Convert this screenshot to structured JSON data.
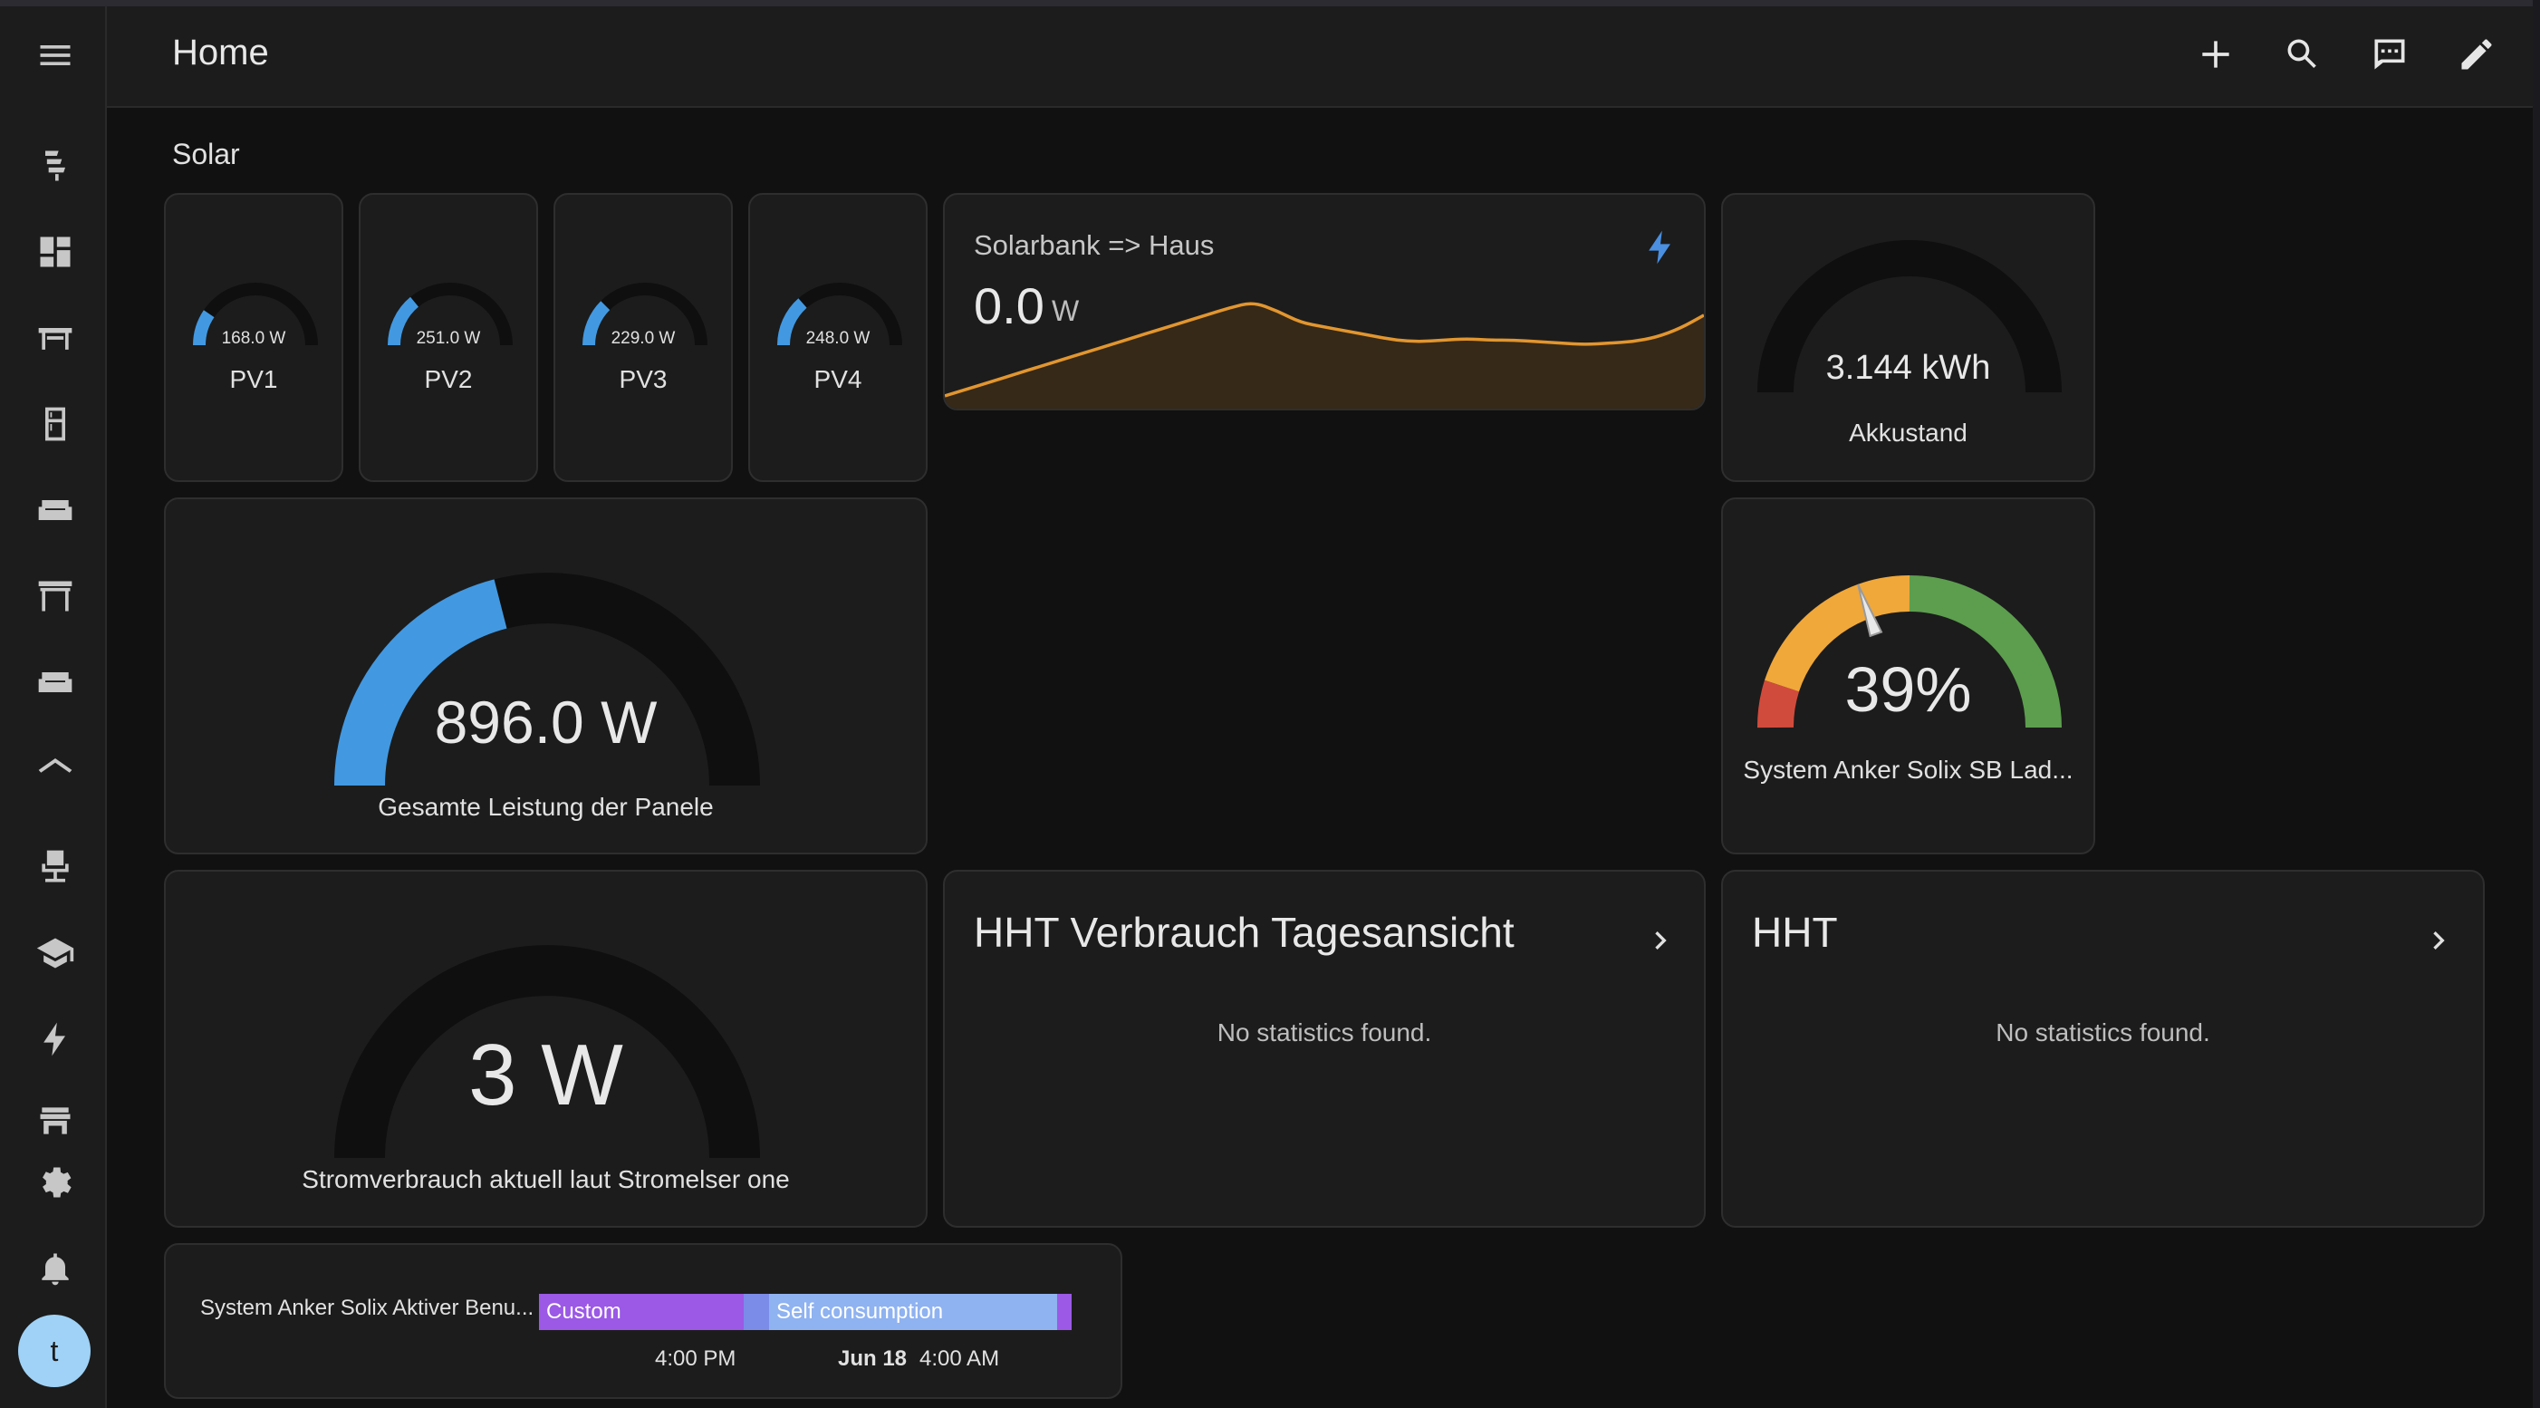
{
  "header": {
    "title": "Home"
  },
  "section": {
    "title": "Solar"
  },
  "sidebar": {
    "icons": [
      "menu-icon",
      "solar-power-icon",
      "dashboard-icon",
      "table-icon",
      "fridge-icon",
      "sofa-icon",
      "pergola-icon",
      "sofa-2-icon",
      "roof-icon",
      "office-chair-icon",
      "school-icon",
      "lightning-icon",
      "store-icon",
      "settings-icon",
      "bell-icon"
    ],
    "avatar_letter": "t"
  },
  "header_actions": [
    "add-icon",
    "search-icon",
    "assist-icon",
    "edit-icon"
  ],
  "pv_cards": [
    {
      "name": "PV1",
      "value": "168.0 W",
      "fraction": 0.19
    },
    {
      "name": "PV2",
      "value": "251.0 W",
      "fraction": 0.28
    },
    {
      "name": "PV3",
      "value": "229.0 W",
      "fraction": 0.25
    },
    {
      "name": "PV4",
      "value": "248.0 W",
      "fraction": 0.27
    }
  ],
  "solarbank": {
    "title": "Solarbank => Haus",
    "value": "0.0",
    "unit": "W",
    "icon": "lightning-icon",
    "color": "#e2962f",
    "trend": [
      0.0,
      0.05,
      0.1,
      0.15,
      0.2,
      0.25,
      0.3,
      0.35,
      0.4,
      0.45,
      0.5,
      0.55,
      0.6,
      0.64,
      0.58,
      0.5,
      0.47,
      0.44,
      0.41,
      0.38,
      0.37,
      0.38,
      0.39,
      0.38,
      0.38,
      0.37,
      0.36,
      0.35,
      0.36,
      0.37,
      0.4,
      0.46,
      0.55
    ]
  },
  "akku": {
    "value": "3.144 kWh",
    "label": "Akkustand",
    "fraction": 0
  },
  "total_power": {
    "value": "896.0 W",
    "label": "Gesamte Leistung der Panele",
    "fraction": 0.42,
    "color": "#4299e1"
  },
  "battery_soc": {
    "value": "39%",
    "label": "System Anker Solix SB Lad...",
    "fraction": 0.39
  },
  "grid_power": {
    "value": "3 W",
    "label": "Stromverbrauch aktuell laut Stromelser one",
    "fraction": 0.0
  },
  "stat_cards": [
    {
      "title": "HHT Verbrauch Tagesansicht",
      "empty": "No statistics found."
    },
    {
      "title": "HHT",
      "empty": "No statistics found."
    }
  ],
  "timeline": {
    "label": "System Anker Solix Aktiver Benu...",
    "segments": [
      {
        "label": "Custom",
        "color": "#9b59e6"
      },
      {
        "label": "",
        "color": "#7b8be8"
      },
      {
        "label": "Self consumption",
        "color": "#8fb2f0"
      },
      {
        "label": "",
        "color": "#9b59e6"
      }
    ],
    "ticks": [
      "4:00 PM",
      "Jun 18",
      "4:00 AM"
    ]
  }
}
